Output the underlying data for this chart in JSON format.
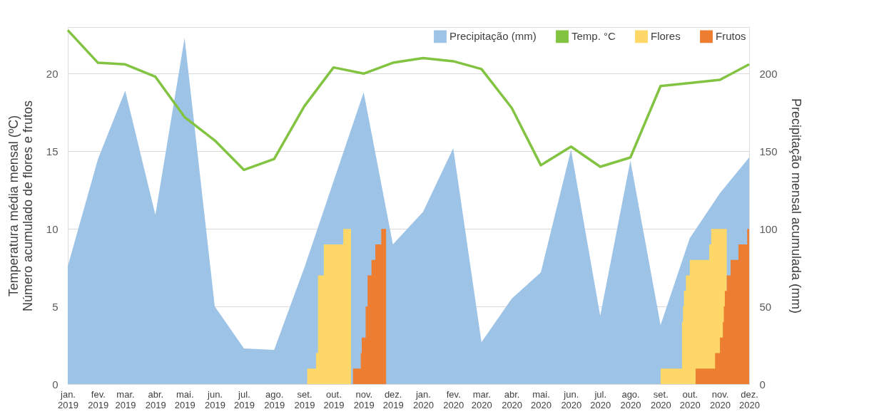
{
  "chart_data": {
    "type": "area",
    "ylabel": "Temperatura média mensal (ºC)\nNúmero acumulado de flores e frutos",
    "y2label": "Precipitação mensal acumulada (mm)",
    "x": [
      "2019-01",
      "2019-02",
      "2019-03",
      "2019-04",
      "2019-05",
      "2019-06",
      "2019-07",
      "2019-08",
      "2019-09",
      "2019-10",
      "2019-11",
      "2019-12",
      "2020-01",
      "2020-02",
      "2020-03",
      "2020-04",
      "2020-05",
      "2020-06",
      "2020-07",
      "2020-08",
      "2020-09",
      "2020-10",
      "2020-11",
      "2020-12"
    ],
    "xlim": [
      "2019-01",
      "2020-12"
    ],
    "xticks": [
      {
        "value": "2019-01",
        "label": "jan. 2019"
      },
      {
        "value": "2019-02",
        "label": "fev. 2019"
      },
      {
        "value": "2019-03",
        "label": "mar. 2019"
      },
      {
        "value": "2019-04",
        "label": "abr. 2019"
      },
      {
        "value": "2019-05",
        "label": "mai. 2019"
      },
      {
        "value": "2019-06",
        "label": "jun. 2019"
      },
      {
        "value": "2019-07",
        "label": "jul. 2019"
      },
      {
        "value": "2019-08",
        "label": "ago. 2019"
      },
      {
        "value": "2019-09",
        "label": "set. 2019"
      },
      {
        "value": "2019-10",
        "label": "out. 2019"
      },
      {
        "value": "2019-11",
        "label": "nov. 2019"
      },
      {
        "value": "2019-12",
        "label": "dez. 2019"
      },
      {
        "value": "2020-01",
        "label": "jan. 2020"
      },
      {
        "value": "2020-02",
        "label": "fev. 2020"
      },
      {
        "value": "2020-03",
        "label": "mar. 2020"
      },
      {
        "value": "2020-04",
        "label": "abr. 2020"
      },
      {
        "value": "2020-05",
        "label": "mai. 2020"
      },
      {
        "value": "2020-06",
        "label": "jun. 2020"
      },
      {
        "value": "2020-07",
        "label": "jul. 2020"
      },
      {
        "value": "2020-08",
        "label": "ago. 2020"
      },
      {
        "value": "2020-09",
        "label": "set. 2020"
      },
      {
        "value": "2020-10",
        "label": "out. 2020"
      },
      {
        "value": "2020-11",
        "label": "nov. 2020"
      },
      {
        "value": "2020-12",
        "label": "dez. 2020"
      }
    ],
    "ylim": [
      0,
      23
    ],
    "yticks": [
      0,
      5,
      10,
      15,
      20
    ],
    "y2lim": [
      0,
      230
    ],
    "y2ticks": [
      0,
      50,
      100,
      150,
      200
    ],
    "grid": "y",
    "legend": "top right",
    "series": [
      {
        "name": "Precipitação (mm)",
        "axis": "y2",
        "color": "#9dc3e6",
        "values": [
          76,
          145,
          189,
          109,
          223,
          50,
          23,
          22,
          75,
          null,
          188,
          90,
          111,
          152,
          27,
          55,
          72,
          151,
          44,
          144,
          38,
          94,
          123,
          146
        ]
      },
      {
        "name": "Temp. °C",
        "type": "line",
        "color": "#82c341",
        "values": [
          22.8,
          20.7,
          20.6,
          19.8,
          17.2,
          15.7,
          13.8,
          14.5,
          17.9,
          20.4,
          20.0,
          20.7,
          21.0,
          20.8,
          20.3,
          17.8,
          14.1,
          15.3,
          14.0,
          14.6,
          19.2,
          19.4,
          19.6,
          20.6
        ]
      },
      {
        "name": "Flores",
        "type": "area",
        "color": "#fdd868",
        "x": [
          "2019-09-04",
          "2019-09-13",
          "2019-09-13",
          "2019-09-15",
          "2019-09-15",
          "2019-09-21",
          "2019-09-21",
          "2019-10-11",
          "2019-10-11",
          "2019-10-19",
          "2019-10-19",
          "2020-09-01",
          "2020-09-01",
          "2020-09-23",
          "2020-09-23",
          "2020-09-24",
          "2020-09-24",
          "2020-09-25",
          "2020-09-25",
          "2020-09-27",
          "2020-09-27",
          "2020-10-01",
          "2020-10-01",
          "2020-10-21",
          "2020-10-21",
          "2020-10-23",
          "2020-10-23",
          "2020-11-08"
        ],
        "values": [
          1,
          1,
          2,
          2,
          7,
          7,
          9,
          9,
          10,
          10,
          0,
          0,
          1,
          1,
          4,
          4,
          5,
          5,
          6,
          6,
          7,
          7,
          8,
          8,
          9,
          9,
          10,
          10
        ]
      },
      {
        "name": "Frutos",
        "type": "area",
        "color": "#ed7d31",
        "x": [
          "2019-10-21",
          "2019-10-29",
          "2019-10-29",
          "2019-10-30",
          "2019-10-30",
          "2019-11-03",
          "2019-11-03",
          "2019-11-05",
          "2019-11-05",
          "2019-11-09",
          "2019-11-09",
          "2019-11-13",
          "2019-11-13",
          "2019-11-19",
          "2019-11-19",
          "2019-11-24",
          "2019-11-24",
          "2020-10-07",
          "2020-10-07",
          "2020-10-27",
          "2020-10-27",
          "2020-11-01",
          "2020-11-01",
          "2020-11-04",
          "2020-11-04",
          "2020-11-05",
          "2020-11-05",
          "2020-11-06",
          "2020-11-06",
          "2020-11-08",
          "2020-11-08",
          "2020-11-12",
          "2020-11-12",
          "2020-11-20",
          "2020-11-20",
          "2020-11-29",
          "2020-11-29",
          "2020-12-01"
        ],
        "values": [
          1,
          1,
          2,
          2,
          3,
          3,
          5,
          5,
          7,
          7,
          8,
          8,
          9,
          9,
          10,
          10,
          0,
          0,
          1,
          1,
          2,
          2,
          3,
          3,
          4,
          4,
          5,
          5,
          6,
          6,
          7,
          7,
          8,
          8,
          9,
          9,
          10,
          10
        ]
      }
    ]
  }
}
